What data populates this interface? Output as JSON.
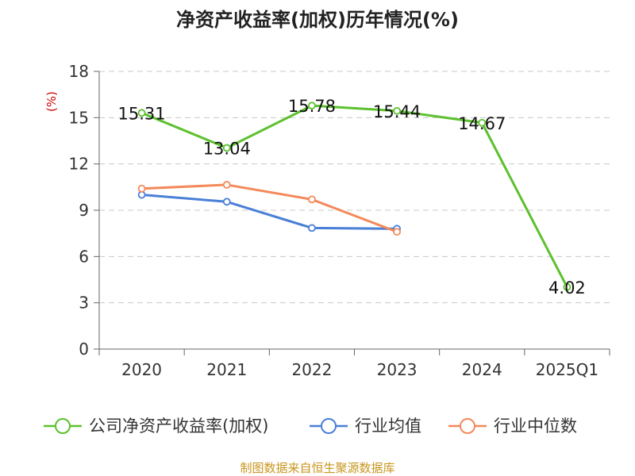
{
  "chart_data": {
    "type": "line",
    "title": "净资产收益率(加权)历年情况(%)",
    "ylabel": "(%)",
    "xlabel": "",
    "categories": [
      "2020",
      "2021",
      "2022",
      "2023",
      "2024",
      "2025Q1"
    ],
    "ylim": [
      0,
      18
    ],
    "yticks": [
      0,
      3,
      6,
      9,
      12,
      15,
      18
    ],
    "grid": "horizontal dashed",
    "legend_position": "bottom",
    "series": [
      {
        "name": "公司净资产收益率(加权)",
        "color": "#5cc12e",
        "values": [
          15.31,
          13.04,
          15.78,
          15.44,
          14.67,
          4.02
        ],
        "labels": [
          "15.31",
          "13.04",
          "15.78",
          "15.44",
          "14.67",
          "4.02"
        ]
      },
      {
        "name": "行业均值",
        "color": "#4a7fd8",
        "values": [
          10.0,
          9.55,
          7.85,
          7.8,
          null,
          null
        ],
        "labels": null
      },
      {
        "name": "行业中位数",
        "color": "#f4895a",
        "values": [
          10.4,
          10.65,
          9.7,
          7.6,
          null,
          null
        ],
        "labels": null
      }
    ],
    "source": "制图数据来自恒生聚源数据库"
  }
}
